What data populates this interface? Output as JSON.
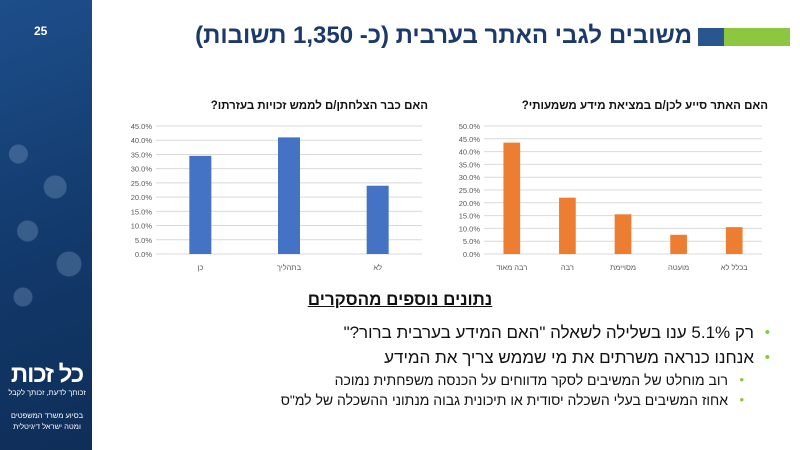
{
  "slide": {
    "page_number": "25",
    "title": "משובים לגבי האתר בערבית (כ- 1,350 תשובות)",
    "subheading": "נתונים נוספים מהסקרים",
    "bullets": [
      "רק 5.1% ענו בשלילה לשאלה \"האם המידע בערבית ברור?\"",
      "אנחנו כנראה משרתים את מי שממש צריך את המידע"
    ],
    "sub_bullets": [
      "רוב מוחלט של המשיבים לסקר מדווחים על הכנסה משפחתית נמוכה",
      "אחוז המשיבים בעלי השכלה יסודית או תיכונית גבוה מנתוני ההשכלה של למ\"ס"
    ],
    "logo": {
      "main": "כל זכות",
      "tagline": "זכותך לדעת, זכותך לקבל"
    },
    "footer": [
      "בסיוע משרד המשפטים",
      "ומטה ישראל דיגיטלית"
    ]
  },
  "colors": {
    "blue_bars": "#4472c4",
    "orange_bars": "#ed7d31",
    "accent_green": "#8dc63f",
    "title_blue": "#1b3a6b",
    "sidebar_blue": "#1d4e8a"
  },
  "chart_data": [
    {
      "type": "bar",
      "title": "האם האתר סייע לכן/ם במציאת מידע משמעותי?",
      "categories": [
        "רבה מאוד",
        "רבה",
        "מסויימת",
        "מועטה",
        "בכלל לא"
      ],
      "values": [
        43.5,
        22.0,
        15.5,
        7.5,
        10.5
      ],
      "ylim": [
        0,
        50
      ],
      "yticks": [
        "0.0%",
        "5.0%",
        "10.0%",
        "15.0%",
        "20.0%",
        "25.0%",
        "30.0%",
        "35.0%",
        "40.0%",
        "45.0%",
        "50.0%"
      ],
      "color": "#ed7d31",
      "grid": true
    },
    {
      "type": "bar",
      "title": "האם כבר הצלחתן/ם לממש זכויות בעזרתו?",
      "categories": [
        "כן",
        "בתהליך",
        "לא"
      ],
      "values": [
        34.5,
        41.0,
        24.0
      ],
      "ylim": [
        0,
        45
      ],
      "yticks": [
        "0.0%",
        "5.0%",
        "10.0%",
        "15.0%",
        "20.0%",
        "25.0%",
        "30.0%",
        "35.0%",
        "40.0%",
        "45.0%"
      ],
      "color": "#4472c4",
      "grid": true
    }
  ]
}
